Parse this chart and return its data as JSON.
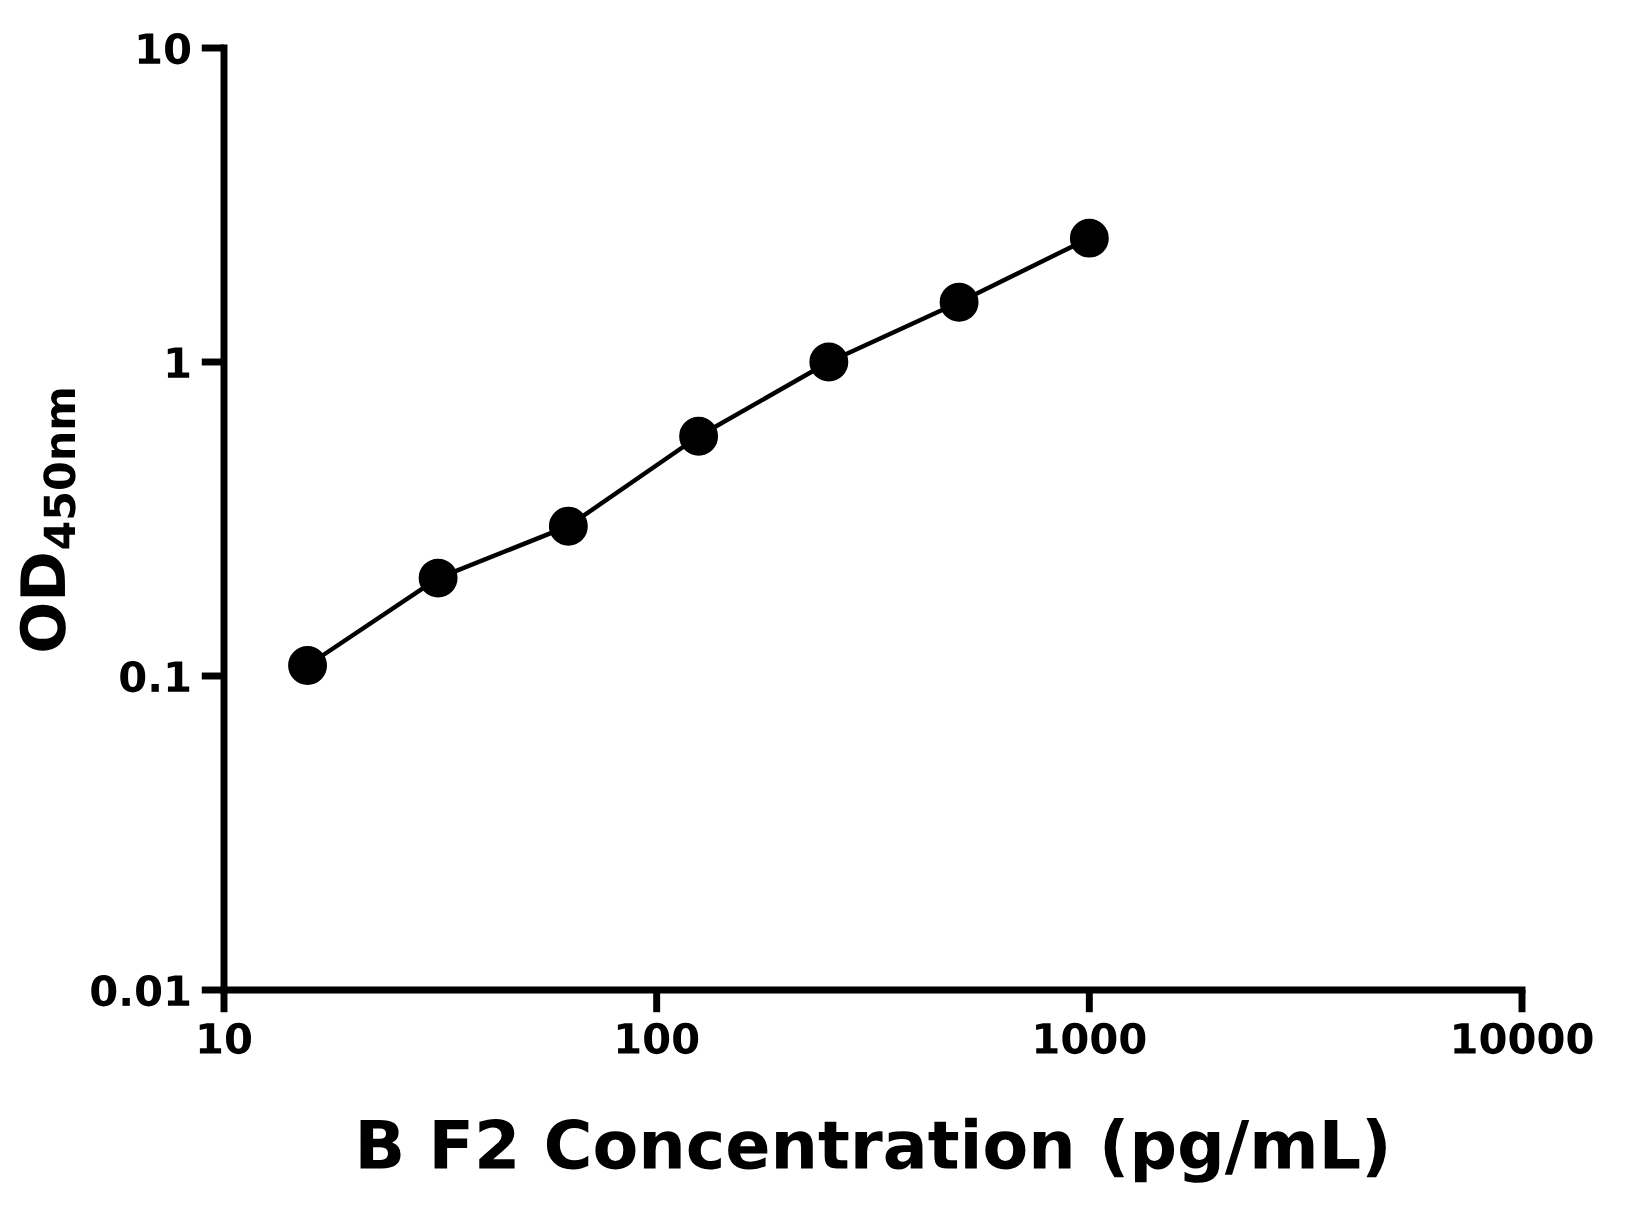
{
  "chart_data": {
    "type": "line",
    "xlabel": "B F2 Concentration (pg/mL)",
    "ylabel": "OD$_{450nm}$",
    "log": "xy",
    "x": [
      15.6,
      31.25,
      62.5,
      125,
      250,
      500,
      1000
    ],
    "series": [
      {
        "color": "#000000",
        "values": [
          0.108,
          0.205,
          0.3,
          0.58,
          1.0,
          1.55,
          2.48
        ]
      }
    ],
    "marker": "circle",
    "line_style": "solid",
    "grid": false,
    "legend": false,
    "xlim": [
      10,
      10000
    ],
    "xticks": [
      10,
      100,
      1000,
      10000
    ],
    "ylim": [
      0.01,
      10
    ],
    "yticks": [
      0.01,
      0.1,
      1,
      10
    ]
  }
}
